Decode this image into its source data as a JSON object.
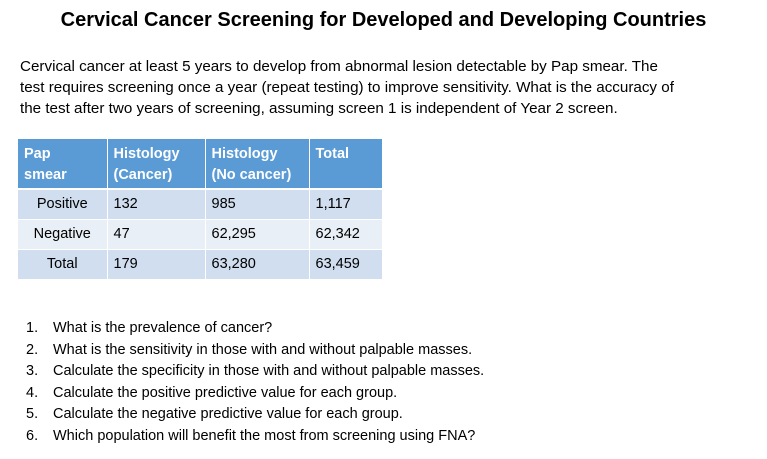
{
  "title": "Cervical Cancer Screening for Developed and Developing  Countries",
  "intro_lines": [
    "Cervical cancer at least 5 years to develop from abnormal lesion detectable by Pap smear. The",
    "test requires screening once a year (repeat testing) to improve sensitivity. What is the accuracy of",
    "the test after two years of screening, assuming screen 1 is independent of Year 2 screen."
  ],
  "table": {
    "headers": [
      [
        "Pap",
        "smear"
      ],
      [
        "Histology",
        "(Cancer)"
      ],
      [
        "Histology",
        "(No cancer)"
      ],
      [
        "Total",
        ""
      ]
    ],
    "rows": [
      [
        "Positive",
        "132",
        "985",
        "1,117"
      ],
      [
        "Negative",
        "47",
        "62,295",
        "62,342"
      ],
      [
        "Total",
        "179",
        "63,280",
        "63,459"
      ]
    ]
  },
  "questions": [
    {
      "num": "1.",
      "text": "What is the prevalence of cancer?"
    },
    {
      "num": "2.",
      "text": "What is the sensitivity in those with and without palpable masses."
    },
    {
      "num": "3.",
      "text": "Calculate the specificity in those with and without palpable masses."
    },
    {
      "num": "4.",
      "text": "Calculate the positive predictive value for each group."
    },
    {
      "num": "5.",
      "text": "Calculate the negative predictive value for each group."
    },
    {
      "num": "6.",
      "text": "Which population will benefit the most from screening using FNA?"
    }
  ],
  "colors": {
    "header_bg": "#5b9bd5",
    "row_odd_bg": "#d0deef",
    "row_even_bg": "#e9eff7"
  }
}
